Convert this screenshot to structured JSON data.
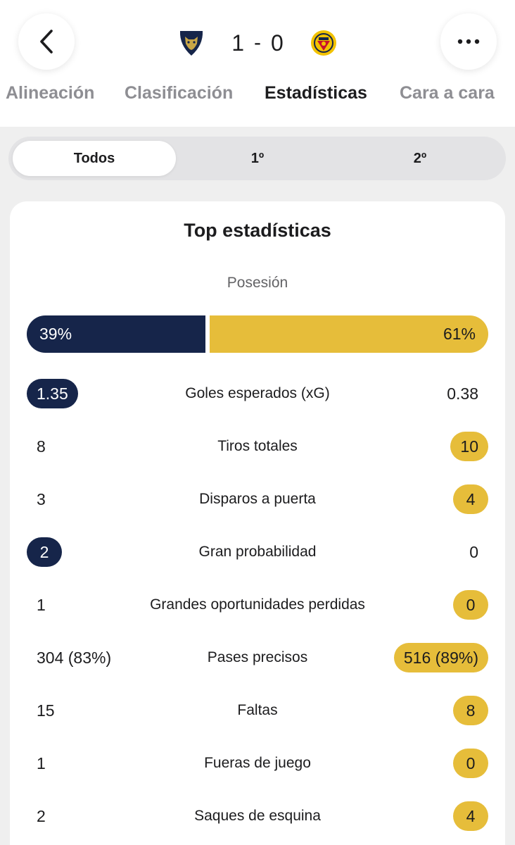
{
  "header": {
    "home_score": "1",
    "separator": "-",
    "away_score": "0",
    "home_crest": "pumas-crest-icon",
    "away_crest": "america-crest-icon"
  },
  "tabs": [
    {
      "label": "Alineación"
    },
    {
      "label": "Clasificación"
    },
    {
      "label": "Estadísticas"
    },
    {
      "label": "Cara a cara"
    }
  ],
  "active_tab": "Estadísticas",
  "periods": [
    {
      "label": "Todos"
    },
    {
      "label": "1º"
    },
    {
      "label": "2º"
    }
  ],
  "active_period": "Todos",
  "card": {
    "title": "Top estadísticas",
    "possession": {
      "label": "Posesión",
      "home_value": "39%",
      "away_value": "61%",
      "home_percent": 39,
      "away_percent": 61
    },
    "stats": [
      {
        "label": "Goles esperados (xG)",
        "home": "1.35",
        "away": "0.38",
        "leader": "home"
      },
      {
        "label": "Tiros totales",
        "home": "8",
        "away": "10",
        "leader": "away"
      },
      {
        "label": "Disparos a puerta",
        "home": "3",
        "away": "4",
        "leader": "away"
      },
      {
        "label": "Gran probabilidad",
        "home": "2",
        "away": "0",
        "leader": "home"
      },
      {
        "label": "Grandes oportunidades perdidas",
        "home": "1",
        "away": "0",
        "leader": "away"
      },
      {
        "label": "Pases precisos",
        "home": "304 (83%)",
        "away": "516 (89%)",
        "leader": "away"
      },
      {
        "label": "Faltas",
        "home": "15",
        "away": "8",
        "leader": "away"
      },
      {
        "label": "Fueras de juego",
        "home": "1",
        "away": "0",
        "leader": "away"
      },
      {
        "label": "Saques de esquina",
        "home": "2",
        "away": "4",
        "leader": "away"
      }
    ]
  },
  "colors": {
    "home": "#16254a",
    "away": "#e6bd3a"
  }
}
